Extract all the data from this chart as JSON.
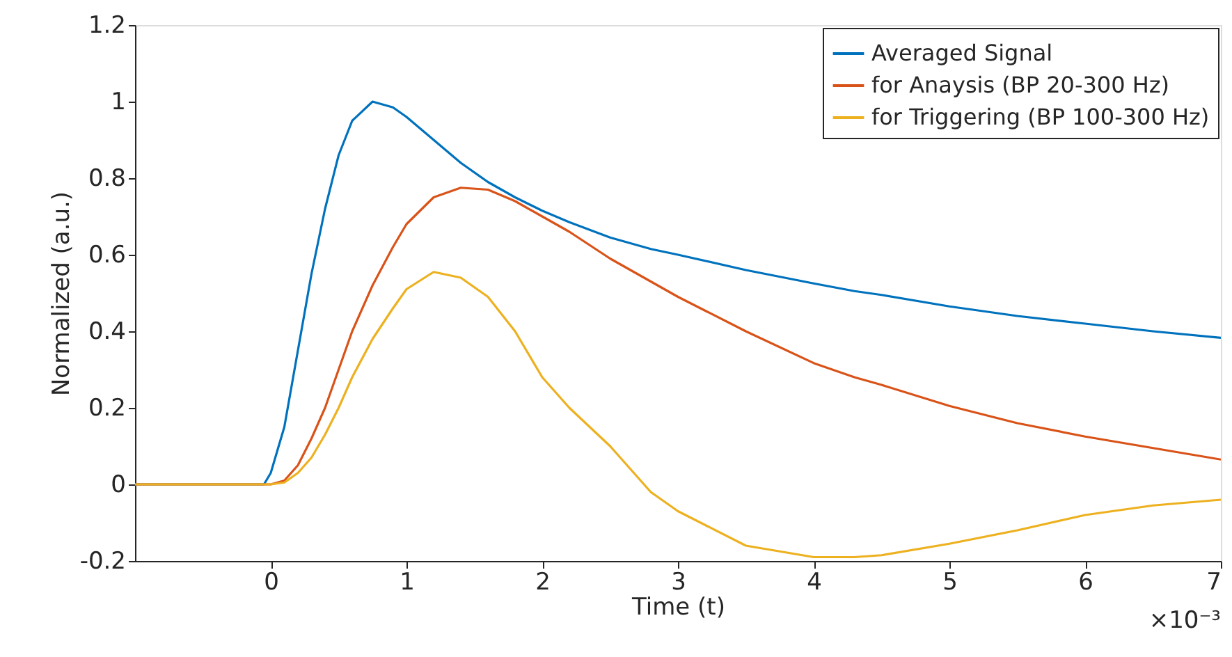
{
  "chart_data": {
    "type": "line",
    "xlabel": "Time (t)",
    "ylabel": "Normalized (a.u.)",
    "annotations": [
      "×10⁻³"
    ],
    "x": [
      -1,
      -0.5,
      -0.05,
      0,
      0.1,
      0.2,
      0.3,
      0.4,
      0.5,
      0.6,
      0.75,
      0.9,
      1,
      1.2,
      1.4,
      1.6,
      1.8,
      2,
      2.2,
      2.5,
      2.8,
      3,
      3.5,
      4,
      4.3,
      4.5,
      5,
      5.5,
      6,
      6.5,
      7
    ],
    "series": [
      {
        "name": "Averaged Signal",
        "color": "#0072bd",
        "values": [
          0,
          0,
          0,
          0.03,
          0.15,
          0.35,
          0.55,
          0.72,
          0.86,
          0.95,
          1.0,
          0.985,
          0.96,
          0.9,
          0.84,
          0.79,
          0.75,
          0.715,
          0.685,
          0.645,
          0.615,
          0.6,
          0.56,
          0.525,
          0.505,
          0.495,
          0.465,
          0.44,
          0.42,
          0.4,
          0.383
        ]
      },
      {
        "name": "for Anaysis (BP 20-300 Hz)",
        "color": "#d95319",
        "values": [
          0,
          0,
          0,
          0,
          0.01,
          0.05,
          0.12,
          0.2,
          0.3,
          0.4,
          0.52,
          0.62,
          0.68,
          0.75,
          0.775,
          0.77,
          0.74,
          0.7,
          0.66,
          0.59,
          0.53,
          0.49,
          0.4,
          0.317,
          0.28,
          0.26,
          0.205,
          0.16,
          0.125,
          0.095,
          0.065
        ]
      },
      {
        "name": "for Triggering (BP 100-300 Hz)",
        "color": "#edb120",
        "values": [
          0,
          0,
          0,
          0,
          0.005,
          0.03,
          0.07,
          0.13,
          0.2,
          0.28,
          0.38,
          0.46,
          0.51,
          0.555,
          0.54,
          0.49,
          0.4,
          0.28,
          0.2,
          0.1,
          -0.02,
          -0.07,
          -0.16,
          -0.19,
          -0.19,
          -0.185,
          -0.155,
          -0.12,
          -0.08,
          -0.055,
          -0.04
        ]
      }
    ],
    "xlim": [
      -1,
      7
    ],
    "xticks": [
      0,
      1,
      2,
      3,
      4,
      5,
      6,
      7
    ],
    "ylim": [
      -0.2,
      1.2
    ],
    "yticks": [
      {
        "value": -0.2,
        "label": "-0.2"
      },
      0,
      0.2,
      0.4,
      0.6,
      0.8,
      1,
      1.2
    ],
    "grid": false,
    "legend": "top right",
    "marker": "none",
    "line_style": "solid"
  }
}
